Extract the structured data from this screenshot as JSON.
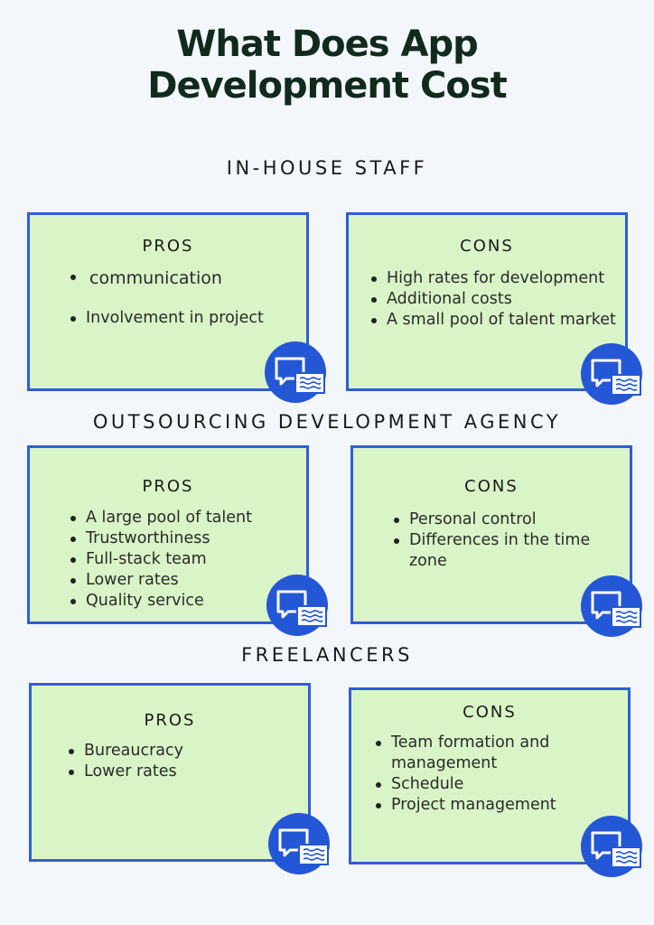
{
  "title": {
    "line1": "What Does App",
    "line2": "Development Cost"
  },
  "sections": [
    {
      "heading": "IN-HOUSE STAFF",
      "pros": {
        "label": "PROS",
        "items": [
          "communication",
          "Involvement in project"
        ]
      },
      "cons": {
        "label": "CONS",
        "items": [
          "High rates for development",
          "Additional costs",
          "A small pool of talent market"
        ]
      }
    },
    {
      "heading": "OUTSOURCING DEVELOPMENT AGENCY",
      "pros": {
        "label": "PROS",
        "items": [
          "A large pool of talent",
          "Trustworthiness",
          "Full-stack team",
          "Lower rates",
          "Quality service"
        ]
      },
      "cons": {
        "label": "CONS",
        "items": [
          "Personal control",
          "Differences in the time zone"
        ]
      }
    },
    {
      "heading": "FREELANCERS",
      "pros": {
        "label": "PROS",
        "items": [
          "Bureaucracy",
          "Lower rates"
        ]
      },
      "cons": {
        "label": "CONS",
        "items": [
          "Team formation and management",
          "Schedule",
          "Project management"
        ]
      }
    }
  ],
  "icons": {
    "badge": "chat-bubbles-icon"
  },
  "colors": {
    "background": "#f3f7fb",
    "card_fill": "#d9f4c7",
    "card_border": "#2e5ed7",
    "icon_blue": "#2457d6",
    "title": "#102a1b"
  }
}
